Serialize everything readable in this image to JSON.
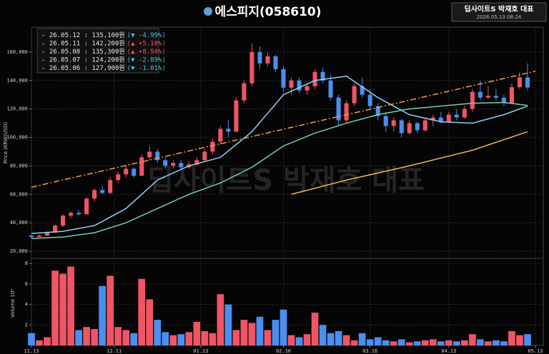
{
  "chart_data": {
    "type": "candlestick",
    "title": "에스피지(058610)",
    "watermark": "딥사이트S 박재호 대표",
    "badge": {
      "title": "딥사이트S 박재호 대표",
      "date": "2026.05.13 08:24"
    },
    "legend_entries": [
      {
        "text": "- 26.05.12 : 135,100원",
        "change": "(▼ -4.99%)",
        "color": "#3ec5e6"
      },
      {
        "text": "- 26.05.11 : 142,200원",
        "change": "(▲ +5.10%)",
        "color": "#ff4d6a"
      },
      {
        "text": "- 26.05.08 : 135,300원",
        "change": "(▲ +8.94%)",
        "color": "#ff4d6a"
      },
      {
        "text": "- 26.05.07 : 124,200원",
        "change": "(▼ -2.89%)",
        "color": "#3ec5e6"
      },
      {
        "text": "- 26.05.06 : 127,900원",
        "change": "(▼ -1.01%)",
        "color": "#3ec5e6"
      }
    ],
    "x": [
      0,
      1,
      2,
      3,
      4,
      5,
      6,
      7,
      8,
      9,
      10,
      11,
      12,
      13,
      14,
      15,
      16,
      17,
      18,
      19,
      20,
      21,
      22,
      23,
      24,
      25,
      26,
      27,
      28,
      29,
      30,
      31,
      32,
      33,
      34,
      35,
      36,
      37,
      38,
      39,
      40,
      41,
      42,
      43,
      44,
      45,
      46,
      47,
      48,
      49,
      50,
      51,
      52,
      53,
      54,
      55,
      56,
      57,
      58,
      59,
      60,
      61,
      62,
      63
    ],
    "open": [
      31000,
      30000,
      31000,
      33000,
      38000,
      45000,
      47000,
      46000,
      57000,
      63000,
      61000,
      70000,
      74000,
      78000,
      73000,
      86000,
      90000,
      84000,
      80000,
      82000,
      79000,
      81000,
      84000,
      90000,
      97000,
      106000,
      104000,
      126000,
      138000,
      160000,
      152000,
      157000,
      148000,
      135000,
      140000,
      133000,
      136000,
      146000,
      140000,
      128000,
      112000,
      124000,
      136000,
      130000,
      122000,
      115000,
      108000,
      112000,
      103000,
      110000,
      105000,
      112000,
      114000,
      111000,
      116000,
      114000,
      120000,
      132000,
      128000,
      129200,
      127900,
      124200,
      135300,
      142200
    ],
    "high": [
      32000,
      32000,
      34000,
      39000,
      46000,
      48000,
      49000,
      58000,
      64000,
      66000,
      72000,
      76000,
      80000,
      79000,
      88000,
      94000,
      92000,
      86000,
      84000,
      84000,
      83000,
      86000,
      92000,
      99000,
      108000,
      112000,
      128000,
      140000,
      166000,
      164000,
      160000,
      158000,
      150000,
      142000,
      142000,
      138000,
      148000,
      149000,
      144000,
      130000,
      126000,
      138000,
      142000,
      134000,
      124000,
      118000,
      114000,
      113000,
      112000,
      111000,
      114000,
      116000,
      118000,
      118000,
      120000,
      122000,
      134000,
      140000,
      136000,
      134000,
      130000,
      138000,
      146000,
      152000
    ],
    "low": [
      29000,
      30000,
      31000,
      33000,
      37000,
      43000,
      45000,
      46000,
      55000,
      60000,
      60000,
      68000,
      72000,
      72000,
      73000,
      84000,
      82000,
      78000,
      78000,
      77000,
      78000,
      80000,
      83000,
      88000,
      95000,
      100000,
      104000,
      124000,
      136000,
      148000,
      150000,
      146000,
      132000,
      130000,
      131000,
      130000,
      134000,
      138000,
      126000,
      108000,
      110000,
      122000,
      128000,
      120000,
      112000,
      104000,
      104000,
      100000,
      102000,
      103000,
      104000,
      108000,
      110000,
      110000,
      112000,
      113000,
      118000,
      126000,
      127000,
      126000,
      122000,
      124000,
      134000,
      133000
    ],
    "close": [
      30000,
      31000,
      33000,
      38000,
      45000,
      47000,
      46000,
      57000,
      63000,
      61000,
      70000,
      74000,
      78000,
      73000,
      86000,
      90000,
      84000,
      80000,
      82000,
      79000,
      81000,
      84000,
      90000,
      97000,
      106000,
      104000,
      126000,
      138000,
      160000,
      152000,
      157000,
      148000,
      135000,
      140000,
      133000,
      136000,
      146000,
      140000,
      128000,
      112000,
      124000,
      136000,
      130000,
      122000,
      115000,
      108000,
      112000,
      103000,
      110000,
      105000,
      112000,
      114000,
      111000,
      116000,
      114000,
      120000,
      132000,
      128000,
      129200,
      127900,
      124200,
      135300,
      142200,
      135100
    ],
    "volume": [
      1.2,
      0.5,
      0.8,
      7.3,
      7.0,
      7.7,
      1.5,
      1.8,
      1.6,
      5.8,
      6.8,
      1.8,
      1.5,
      1.2,
      6.5,
      4.5,
      2.5,
      1.3,
      1.0,
      1.1,
      1.3,
      2.3,
      1.4,
      1.2,
      5.0,
      4.0,
      1.5,
      2.5,
      2.2,
      2.8,
      1.5,
      2.5,
      3.5,
      1.0,
      0.8,
      1.1,
      3.2,
      2.0,
      1.2,
      1.4,
      1.0,
      0.5,
      1.2,
      0.6,
      0.8,
      0.5,
      0.4,
      0.6,
      0.3,
      0.4,
      0.5,
      0.6,
      0.4,
      0.5,
      0.4,
      0.5,
      1.1,
      0.6,
      0.4,
      0.5,
      0.4,
      1.4,
      1.0,
      1.1
    ],
    "up_color": "#f05565",
    "down_color": "#4a8ff0",
    "lines": [
      {
        "color": "#8fd0f5",
        "dash": false,
        "x": [
          0,
          4,
          8,
          12,
          16,
          20,
          24,
          28,
          32,
          36,
          40,
          44,
          48,
          52,
          56,
          60,
          63
        ],
        "values": [
          32500,
          34000,
          38000,
          50000,
          70000,
          80000,
          86000,
          104000,
          130000,
          140000,
          143000,
          128000,
          116000,
          111000,
          110000,
          116000,
          122000
        ]
      },
      {
        "color": "#6fd2a8",
        "dash": false,
        "x": [
          0,
          4,
          8,
          12,
          16,
          20,
          24,
          28,
          32,
          36,
          40,
          44,
          48,
          52,
          56,
          60,
          63
        ],
        "values": [
          29000,
          30000,
          33000,
          40000,
          50000,
          60000,
          68000,
          79000,
          94000,
          103000,
          110000,
          116000,
          120000,
          122000,
          124000,
          124500,
          122500
        ]
      },
      {
        "color": "#f2b54a",
        "dash": false,
        "x": [
          33,
          40,
          48,
          56,
          63
        ],
        "values": [
          60000,
          70000,
          80000,
          91000,
          104000
        ]
      },
      {
        "color": "#f0a040",
        "dash": true,
        "x": [
          0,
          64
        ],
        "values": [
          65000,
          146500
        ]
      }
    ],
    "xlim": [
      0,
      65
    ],
    "xticks": [
      {
        "value": 0,
        "label": "11.13"
      },
      {
        "value": 10.5,
        "label": "12.11"
      },
      {
        "value": 21.5,
        "label": "01.13"
      },
      {
        "value": 32,
        "label": "02.10"
      },
      {
        "value": 43,
        "label": "03.16"
      },
      {
        "value": 53,
        "label": "04.13"
      },
      {
        "value": 64,
        "label": "05.13"
      }
    ],
    "ylim": [
      15000,
      177500
    ],
    "yticks": [
      {
        "value": 20000,
        "label": "20,000"
      },
      {
        "value": 40000,
        "label": "40,000"
      },
      {
        "value": 60000,
        "label": "60,000"
      },
      {
        "value": 80000,
        "label": "80,000"
      },
      {
        "value": 100000,
        "label": "100,000"
      },
      {
        "value": 120000,
        "label": "120,000"
      },
      {
        "value": 140000,
        "label": "140,000"
      },
      {
        "value": 160000,
        "label": "160,000"
      }
    ],
    "ylabel": "Price (KRW/USD)",
    "y2lim": [
      0,
      8.5
    ],
    "y2ticks": [
      2,
      4,
      6,
      8
    ],
    "y2label": "Volume 10⁶",
    "grid": true
  }
}
